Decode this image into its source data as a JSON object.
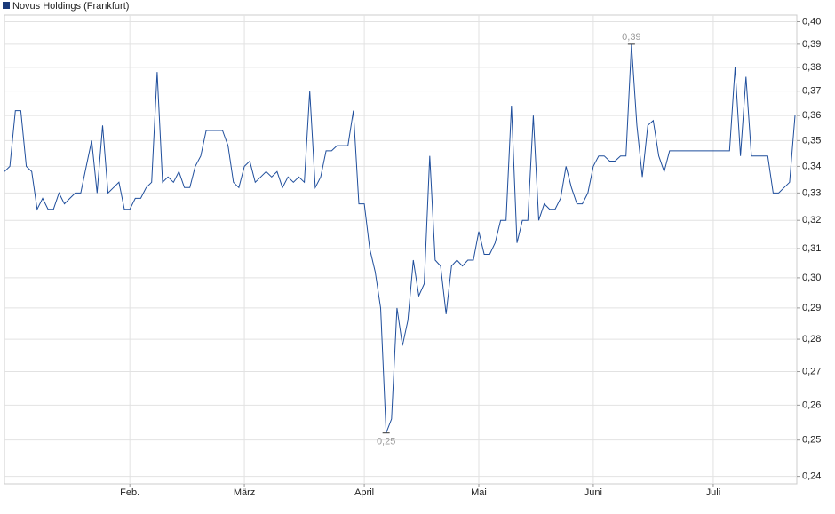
{
  "chart_data": {
    "type": "line",
    "log_scale": true,
    "grid": true,
    "legend": "top-left",
    "series": [
      {
        "name": "Novus Holdings (Frankfurt)",
        "color": "#1f4e9c",
        "values": [
          0.338,
          0.34,
          0.362,
          0.362,
          0.34,
          0.338,
          0.324,
          0.328,
          0.324,
          0.324,
          0.33,
          0.326,
          0.328,
          0.33,
          0.33,
          0.34,
          0.35,
          0.33,
          0.356,
          0.33,
          0.332,
          0.334,
          0.324,
          0.324,
          0.328,
          0.328,
          0.332,
          0.334,
          0.378,
          0.334,
          0.336,
          0.334,
          0.338,
          0.332,
          0.332,
          0.34,
          0.344,
          0.354,
          0.354,
          0.354,
          0.354,
          0.348,
          0.334,
          0.332,
          0.34,
          0.342,
          0.334,
          0.336,
          0.338,
          0.336,
          0.338,
          0.332,
          0.336,
          0.334,
          0.336,
          0.334,
          0.37,
          0.332,
          0.336,
          0.346,
          0.346,
          0.348,
          0.348,
          0.348,
          0.362,
          0.326,
          0.326,
          0.31,
          0.302,
          0.29,
          0.252,
          0.256,
          0.29,
          0.278,
          0.286,
          0.306,
          0.294,
          0.298,
          0.344,
          0.306,
          0.304,
          0.288,
          0.304,
          0.306,
          0.304,
          0.306,
          0.306,
          0.316,
          0.308,
          0.308,
          0.312,
          0.32,
          0.32,
          0.364,
          0.312,
          0.32,
          0.32,
          0.36,
          0.32,
          0.326,
          0.324,
          0.324,
          0.328,
          0.34,
          0.332,
          0.326,
          0.326,
          0.33,
          0.34,
          0.344,
          0.344,
          0.342,
          0.342,
          0.344,
          0.344,
          0.39,
          0.356,
          0.336,
          0.356,
          0.358,
          0.344,
          0.338,
          0.346,
          0.346,
          0.346,
          0.346,
          0.346,
          0.346,
          0.346,
          0.346,
          0.346,
          0.346,
          0.346,
          0.346,
          0.38,
          0.344,
          0.376,
          0.344,
          0.344,
          0.344,
          0.344,
          0.33,
          0.33,
          0.332,
          0.334,
          0.36
        ],
        "value_labels": [
          null,
          null,
          null,
          null,
          null,
          null,
          null,
          null,
          null,
          null,
          null,
          null,
          null,
          null,
          null,
          null,
          null,
          null,
          null,
          null,
          null,
          null,
          null,
          null,
          null,
          null,
          null,
          null,
          null,
          null,
          null,
          null,
          null,
          null,
          null,
          null,
          null,
          null,
          null,
          null,
          null,
          null,
          null,
          null,
          null,
          null,
          null,
          null,
          null,
          null,
          null,
          null,
          null,
          null,
          null,
          null,
          null,
          null,
          null,
          null,
          null,
          null,
          null,
          null,
          null,
          null,
          null,
          null,
          null,
          null,
          "0,25",
          null,
          null,
          null,
          null,
          null,
          null,
          null,
          null,
          null,
          null,
          null,
          null,
          null,
          null,
          null,
          null,
          null,
          null,
          null,
          null,
          null,
          null,
          null,
          null,
          null,
          null,
          null,
          null,
          null,
          null,
          null,
          null,
          null,
          null,
          null,
          null,
          null,
          null,
          null,
          null,
          null,
          null,
          null,
          null,
          "0,39",
          null,
          null,
          null,
          null,
          null,
          null,
          null,
          null,
          null,
          null,
          null,
          null,
          null,
          null,
          null,
          null,
          null,
          null,
          null,
          null,
          null,
          null,
          null,
          null,
          null,
          null,
          null,
          null,
          null,
          null
        ]
      }
    ],
    "categories": [
      null,
      null,
      null,
      null,
      null,
      null,
      null,
      null,
      null,
      null,
      null,
      null,
      null,
      null,
      null,
      null,
      null,
      null,
      null,
      null,
      null,
      null,
      null,
      "Feb.",
      null,
      null,
      null,
      null,
      null,
      null,
      null,
      null,
      null,
      null,
      null,
      null,
      null,
      null,
      null,
      null,
      null,
      null,
      null,
      null,
      "März",
      null,
      null,
      null,
      null,
      null,
      null,
      null,
      null,
      null,
      null,
      null,
      null,
      null,
      null,
      null,
      null,
      null,
      null,
      null,
      null,
      null,
      "April",
      null,
      null,
      null,
      null,
      null,
      null,
      null,
      null,
      null,
      null,
      null,
      null,
      null,
      null,
      null,
      null,
      null,
      null,
      null,
      null,
      "Mai",
      null,
      null,
      null,
      null,
      null,
      null,
      null,
      null,
      null,
      null,
      null,
      null,
      null,
      null,
      null,
      null,
      null,
      null,
      null,
      null,
      "Juni",
      null,
      null,
      null,
      null,
      null,
      null,
      null,
      null,
      null,
      null,
      null,
      null,
      null,
      null,
      null,
      null,
      null,
      null,
      null,
      null,
      null,
      "Juli",
      null,
      null,
      null,
      null,
      null,
      null,
      null,
      null,
      null,
      null,
      null,
      null,
      null,
      null,
      null
    ],
    "ylim": [
      0.238,
      0.403
    ],
    "yticks": [
      {
        "value": 0.24,
        "label": "0,24"
      },
      {
        "value": 0.25,
        "label": "0,25"
      },
      {
        "value": 0.26,
        "label": "0,26"
      },
      {
        "value": 0.27,
        "label": "0,27"
      },
      {
        "value": 0.28,
        "label": "0,28"
      },
      {
        "value": 0.29,
        "label": "0,29"
      },
      {
        "value": 0.3,
        "label": "0,30"
      },
      {
        "value": 0.31,
        "label": "0,31"
      },
      {
        "value": 0.32,
        "label": "0,32"
      },
      {
        "value": 0.33,
        "label": "0,33"
      },
      {
        "value": 0.34,
        "label": "0,34"
      },
      {
        "value": 0.35,
        "label": "0,35"
      },
      {
        "value": 0.36,
        "label": "0,36"
      },
      {
        "value": 0.37,
        "label": "0,37"
      },
      {
        "value": 0.38,
        "label": "0,38"
      },
      {
        "value": 0.39,
        "label": "0,39"
      },
      {
        "value": 0.4,
        "label": "0,40"
      }
    ]
  }
}
